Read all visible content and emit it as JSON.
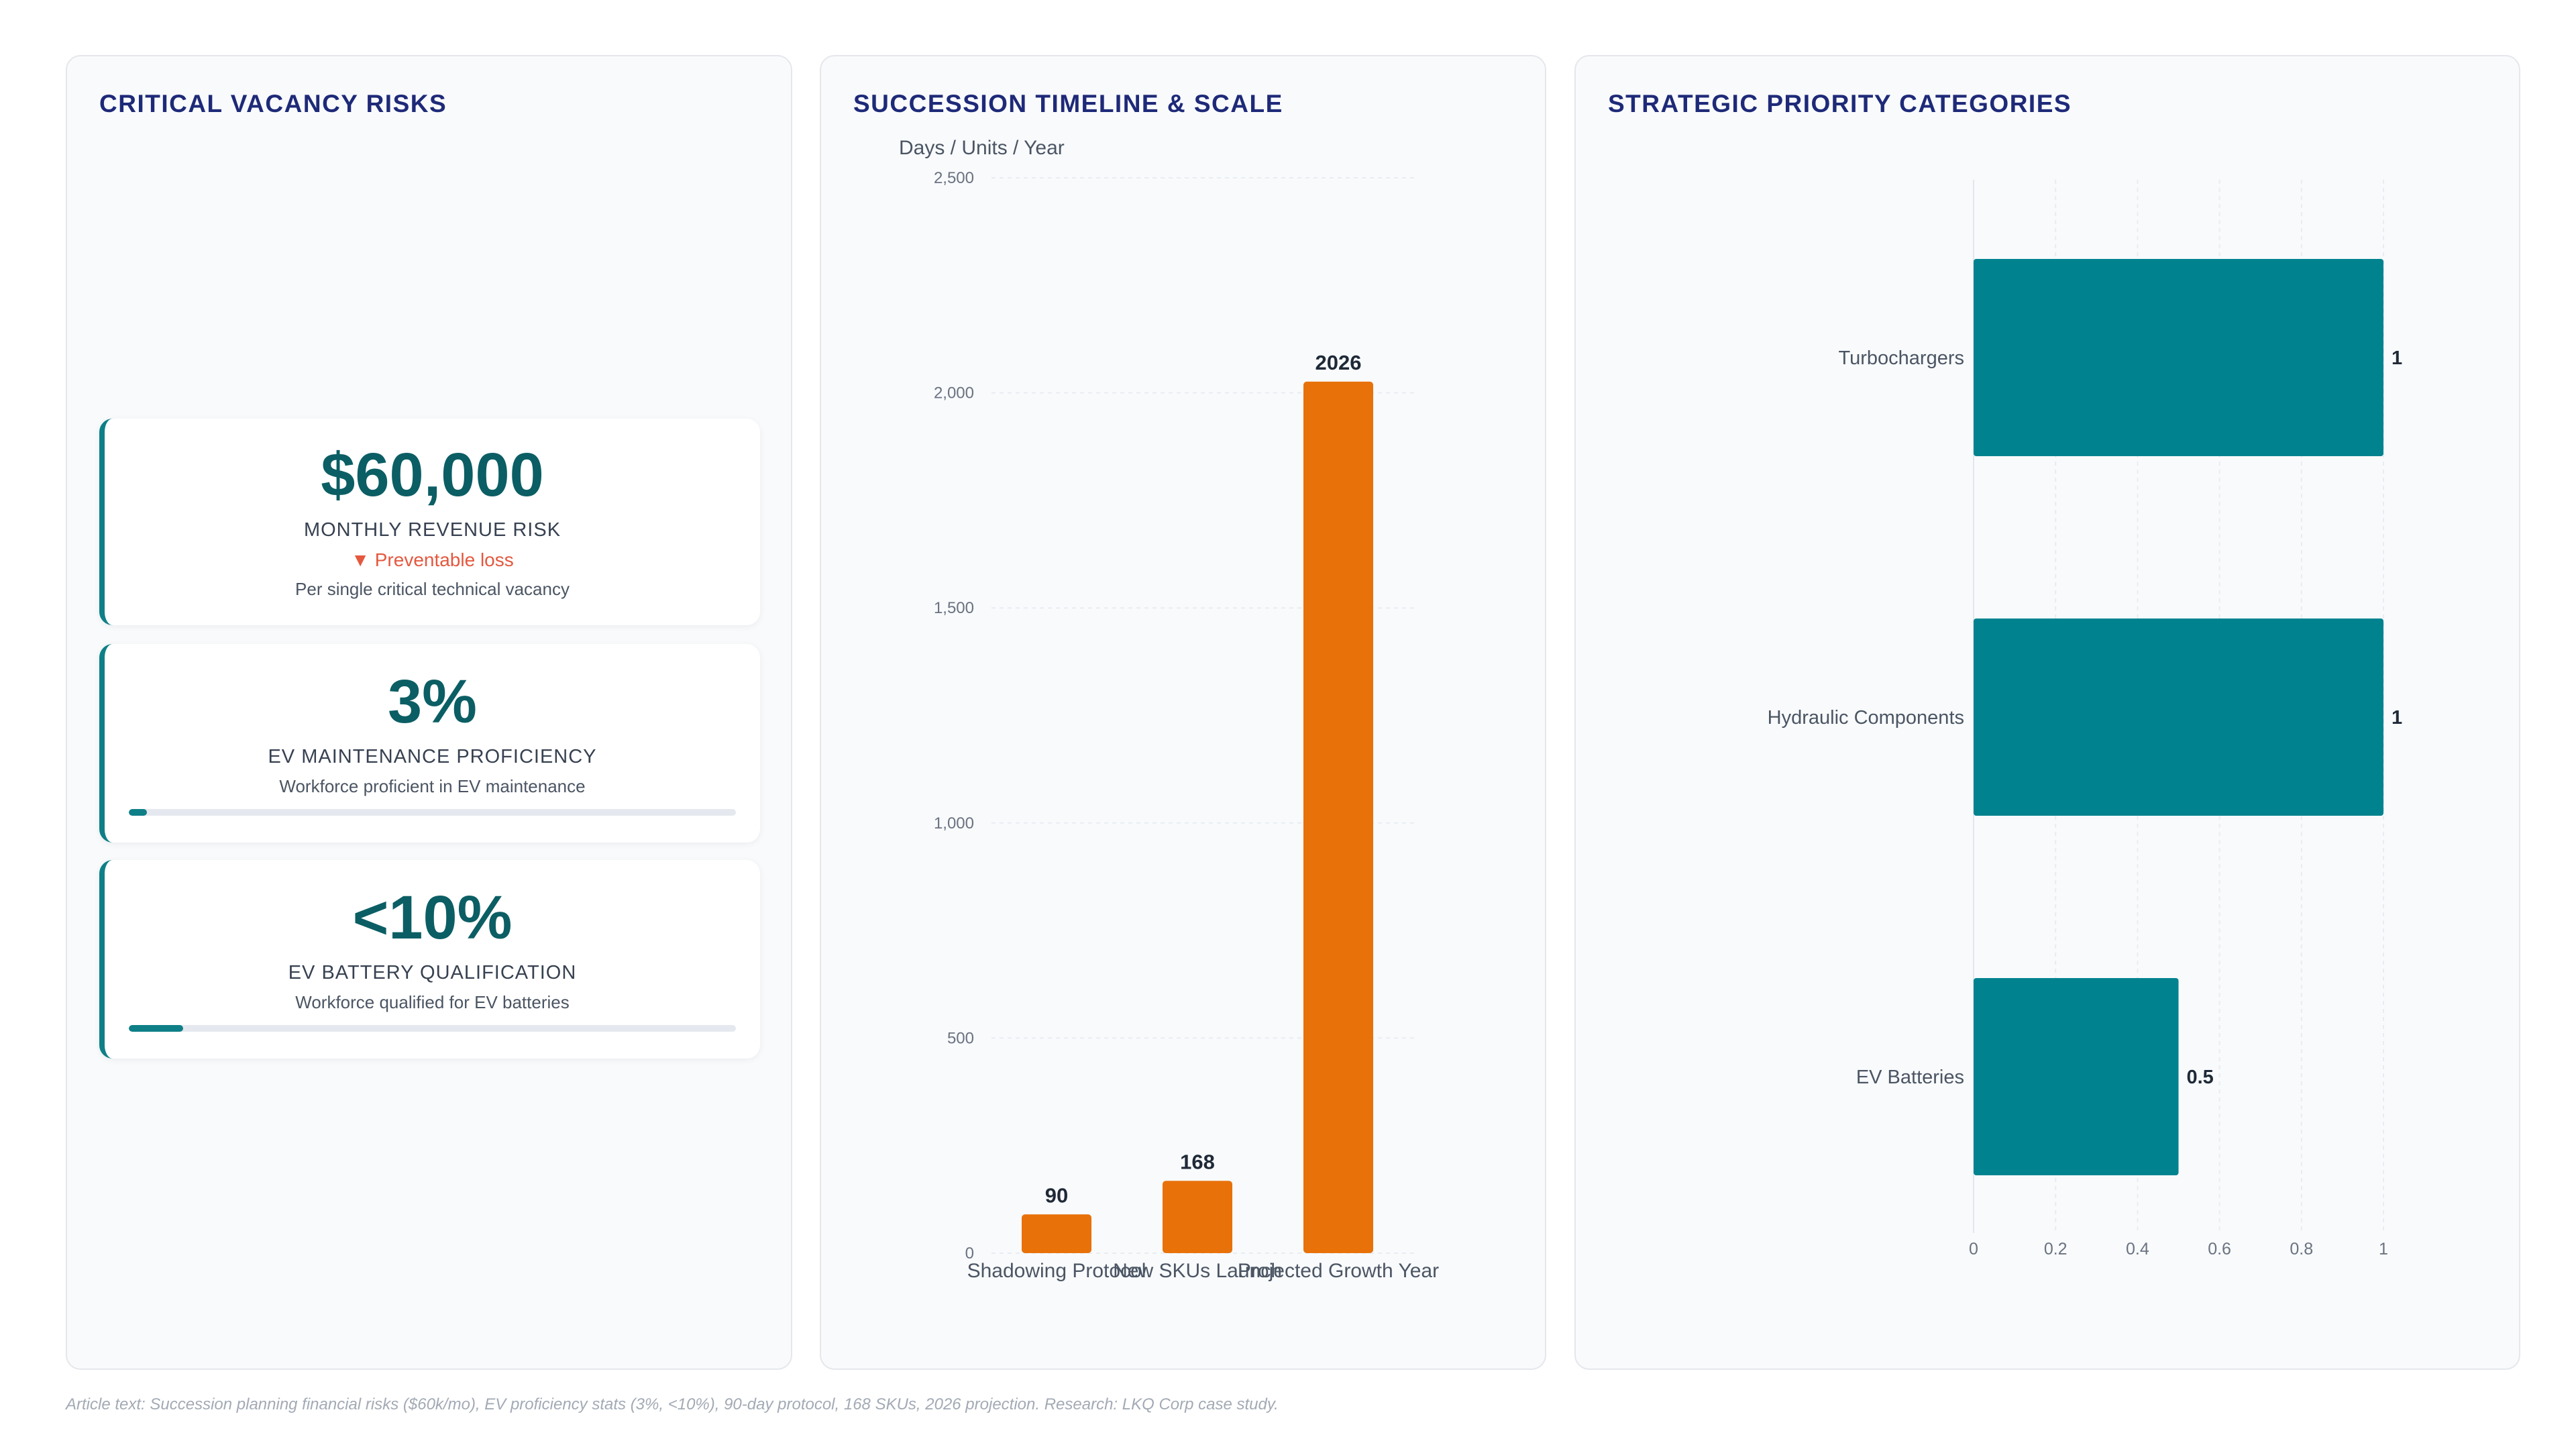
{
  "panels": {
    "risks": {
      "title": "CRITICAL VACANCY RISKS",
      "cards": [
        {
          "value": "$60,000",
          "label": "MONTHLY REVENUE RISK",
          "trend": "▼ Preventable loss",
          "sub": "Per single critical technical vacancy"
        },
        {
          "value": "3%",
          "label": "EV MAINTENANCE PROFICIENCY",
          "sub": "Workforce proficient in EV maintenance",
          "progress": 0.03
        },
        {
          "value": "<10%",
          "label": "EV BATTERY QUALIFICATION",
          "sub": "Workforce qualified for EV batteries",
          "progress": 0.09
        }
      ]
    },
    "timeline": {
      "title": "SUCCESSION TIMELINE & SCALE"
    },
    "priorities": {
      "title": "STRATEGIC PRIORITY CATEGORIES"
    }
  },
  "chart_data": [
    {
      "type": "bar",
      "title": "SUCCESSION TIMELINE & SCALE",
      "ylabel": "Days / Units / Year",
      "categories": [
        "Shadowing Protocol",
        "New SKUs Launch",
        "Projected Growth Year"
      ],
      "values": [
        90,
        168,
        2026
      ],
      "data_labels": [
        "90",
        "168",
        "2026"
      ],
      "ylim": [
        0,
        2500
      ],
      "yticks": [
        0,
        500,
        1000,
        1500,
        2000,
        2500
      ],
      "ytick_labels": [
        "0",
        "500",
        "1,000",
        "1,500",
        "2,000",
        "2,500"
      ],
      "grid": true,
      "color": "#e8710a"
    },
    {
      "type": "bar",
      "orientation": "horizontal",
      "title": "STRATEGIC PRIORITY CATEGORIES",
      "categories": [
        "Turbochargers",
        "Hydraulic Components",
        "EV Batteries"
      ],
      "values": [
        1,
        1,
        0.5
      ],
      "data_labels": [
        "1",
        "1",
        "0.5"
      ],
      "xlim": [
        0,
        1
      ],
      "xticks": [
        0,
        0.2,
        0.4,
        0.6,
        0.8,
        1
      ],
      "xtick_labels": [
        "0",
        "0.2",
        "0.4",
        "0.6",
        "0.8",
        "1"
      ],
      "grid": true,
      "color": "#00838f"
    }
  ],
  "footnote": "Article text: Succession planning financial risks ($60k/mo), EV proficiency stats (3%, <10%), 90-day protocol, 168 SKUs, 2026 projection. Research: LKQ Corp case study."
}
